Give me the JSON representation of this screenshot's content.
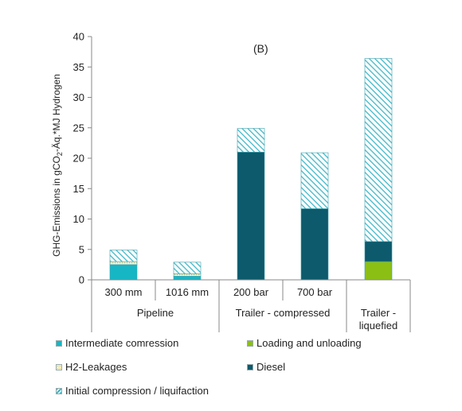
{
  "chart_data": {
    "type": "bar",
    "stacked": true,
    "title": "(B)",
    "ylabel_parts": [
      "GHG-Emissions in gCO",
      "2",
      "-Äq.*MJ Hydrogen"
    ],
    "ylim": [
      0,
      40
    ],
    "yticks": [
      "0",
      "5",
      "10",
      "15",
      "20",
      "25",
      "30",
      "35",
      "40"
    ],
    "categories": [
      "300 mm",
      "1016 mm",
      "200 bar",
      "700 bar",
      ""
    ],
    "groups": [
      {
        "label": "Pipeline",
        "span": 2
      },
      {
        "label": "Trailer - compressed",
        "span": 2
      },
      {
        "label_lines": [
          "Trailer -",
          "liquefied"
        ],
        "span": 1
      }
    ],
    "series": [
      {
        "name": "Intermediate comression",
        "color": "#17b6c4",
        "pattern": "solid",
        "values": [
          2.5,
          0.6,
          0,
          0,
          0
        ]
      },
      {
        "name": "Loading and unloading",
        "color": "#8cbf14",
        "pattern": "solid",
        "values": [
          0,
          0,
          0,
          0,
          3.0
        ]
      },
      {
        "name": "H2-Leakages",
        "color": "#f3f0c8",
        "pattern": "dots",
        "values": [
          0.5,
          0.4,
          0,
          0,
          0
        ]
      },
      {
        "name": "Diesel",
        "color": "#0c5a6c",
        "pattern": "solid",
        "values": [
          0,
          0,
          21.0,
          11.7,
          3.3
        ]
      },
      {
        "name": "Initial compression / liquifaction",
        "color": "#3fb8c8",
        "pattern": "hatch",
        "values": [
          1.9,
          1.9,
          3.9,
          9.2,
          30.1
        ]
      }
    ],
    "grid": false,
    "legend_position": "bottom"
  }
}
